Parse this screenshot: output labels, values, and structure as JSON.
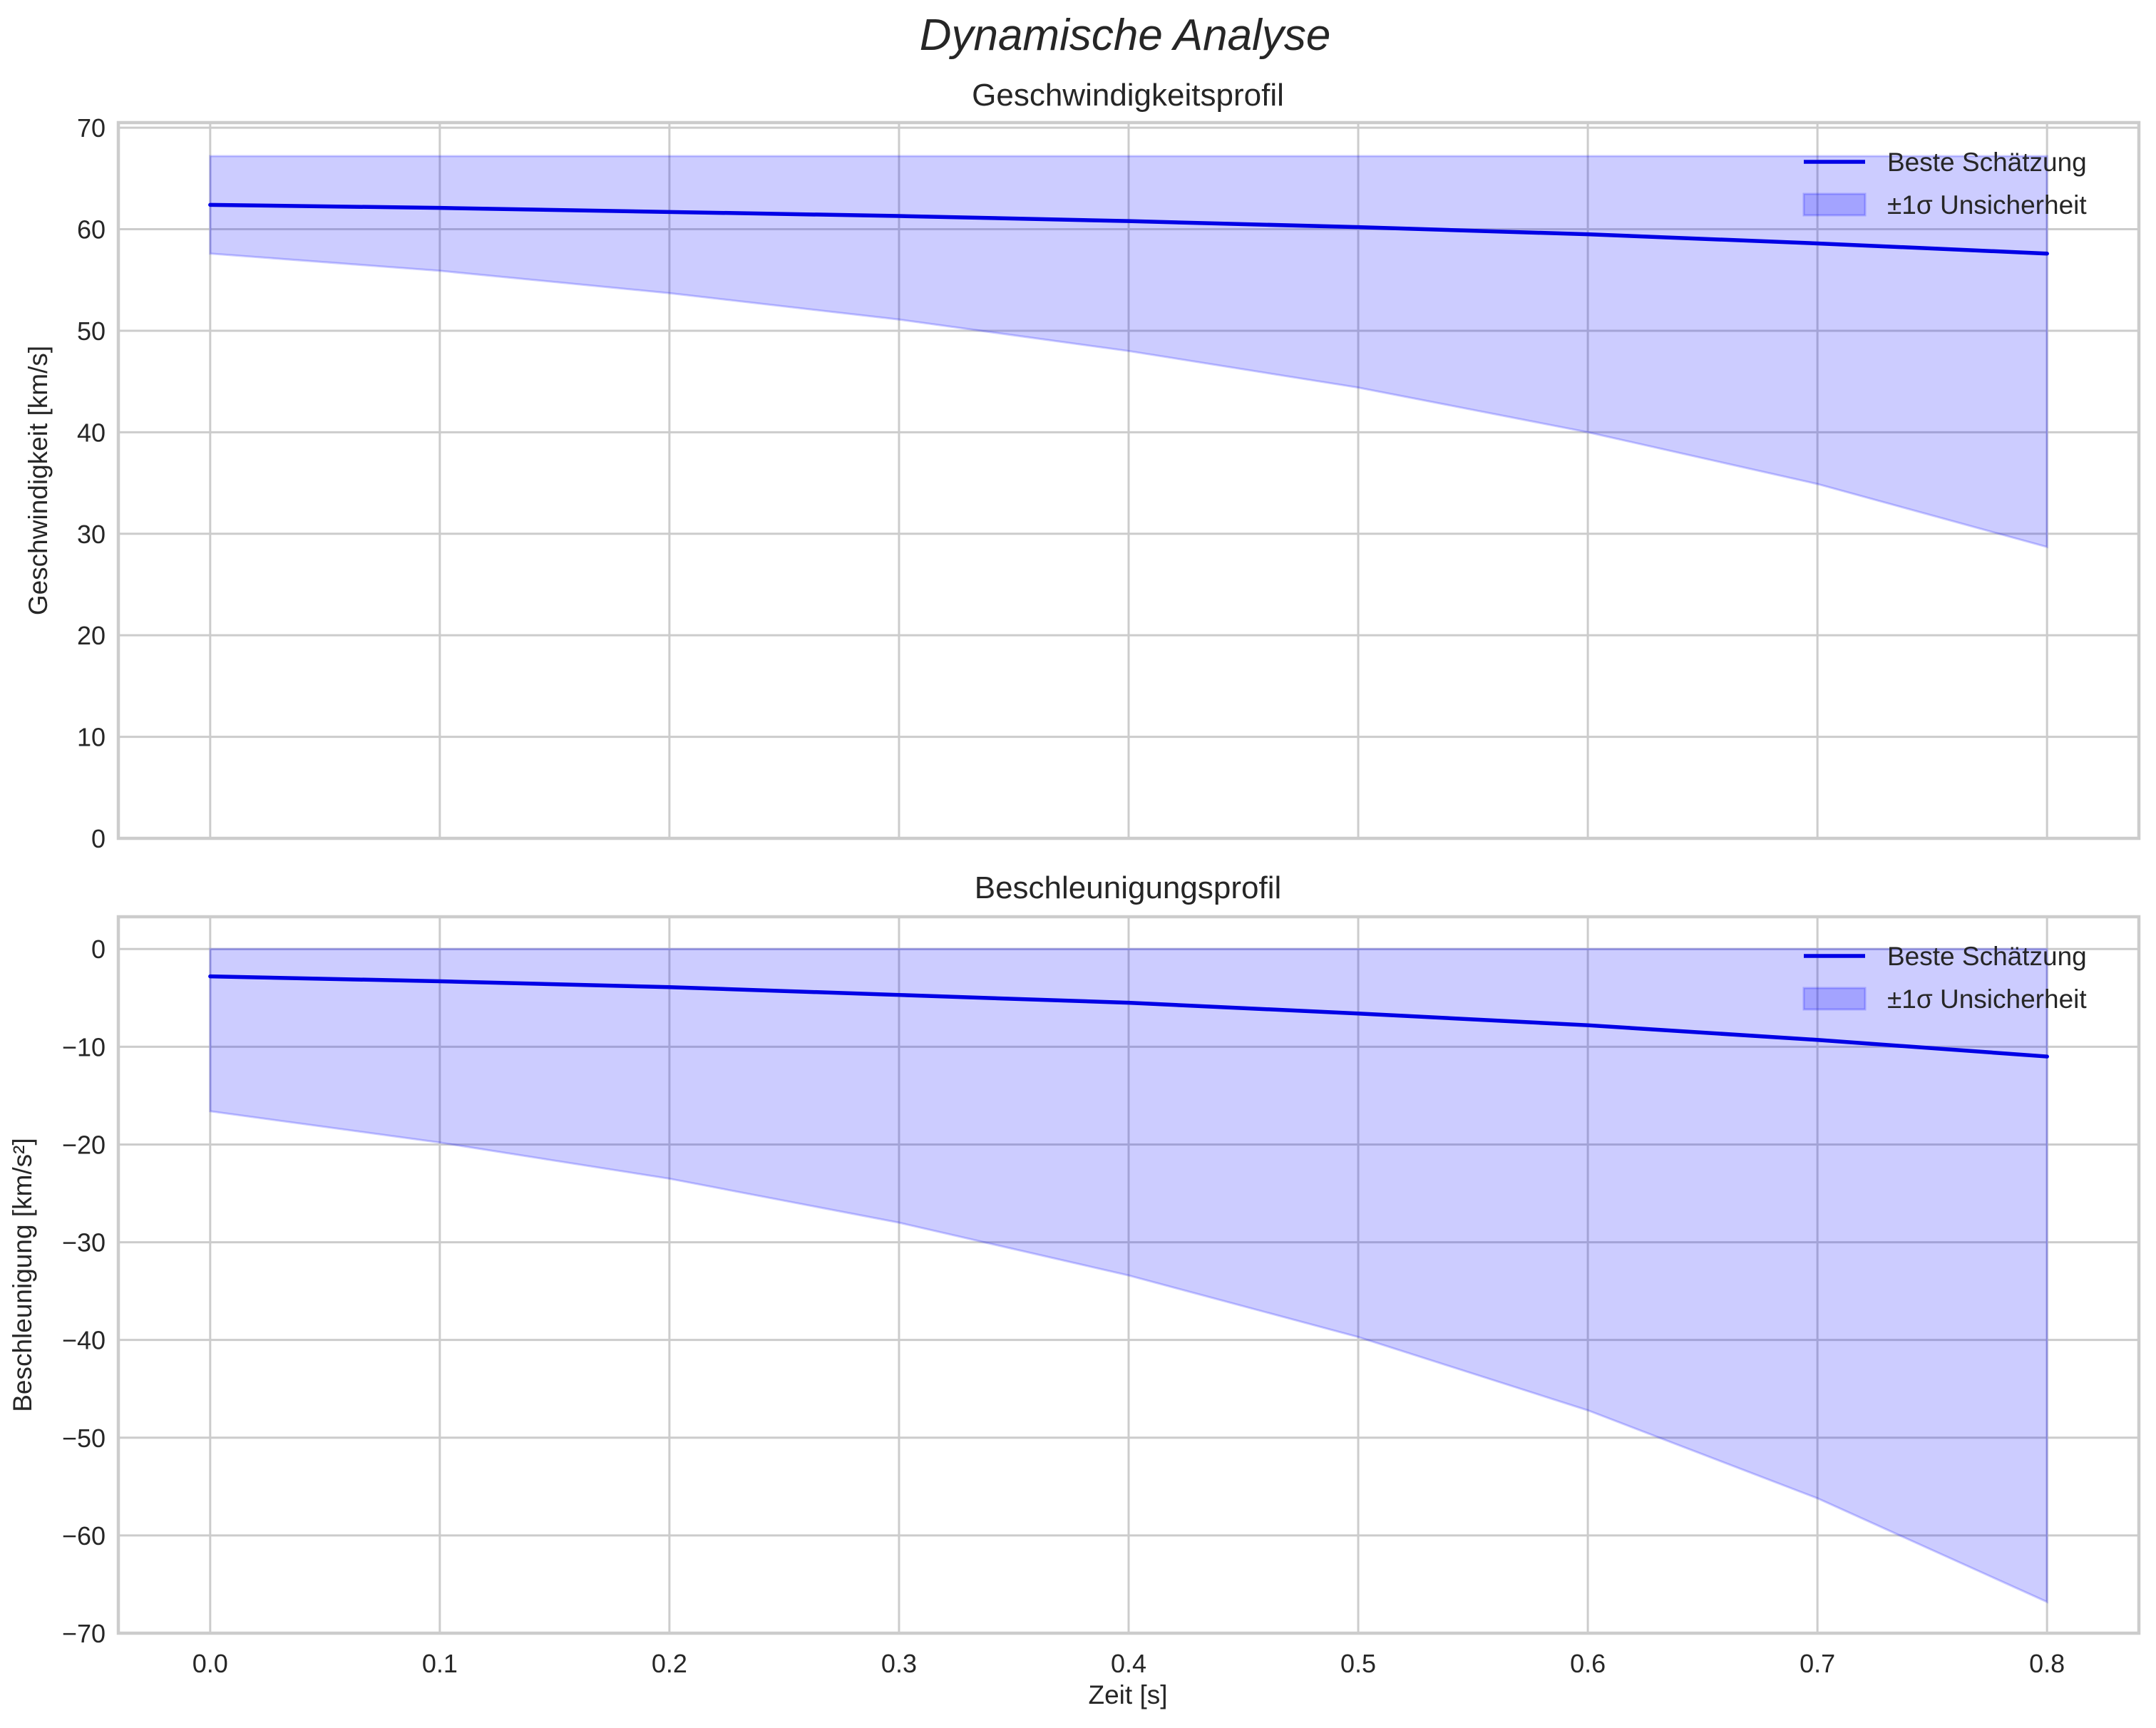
{
  "figure": {
    "suptitle": "Dynamische Analyse",
    "background": "#ffffff"
  },
  "colors": {
    "line": "#0000e6",
    "fill": "#0000ff",
    "fill_opacity": 0.2,
    "grid": "#cccccc",
    "text": "#262626"
  },
  "legend": {
    "line_label": "Beste Schätzung",
    "fill_label": "±1σ Unsicherheit"
  },
  "chart_data": [
    {
      "type": "line",
      "title": "Geschwindigkeitsprofil",
      "xlabel": "",
      "ylabel": "Geschwindigkeit [km/s]",
      "xlim": [
        -0.04,
        0.84
      ],
      "ylim": [
        0,
        70.5
      ],
      "xticks": [
        0.0,
        0.1,
        0.2,
        0.3,
        0.4,
        0.5,
        0.6,
        0.7,
        0.8
      ],
      "xtick_labels_visible": false,
      "yticks": [
        0,
        10,
        20,
        30,
        40,
        50,
        60,
        70
      ],
      "ytick_labels": [
        "0",
        "10",
        "20",
        "30",
        "40",
        "50",
        "60",
        "70"
      ],
      "grid": true,
      "legend_position": "upper right",
      "x": [
        0.0,
        0.1,
        0.2,
        0.3,
        0.4,
        0.5,
        0.6,
        0.7,
        0.8
      ],
      "series": [
        {
          "name": "Beste Schätzung",
          "kind": "line",
          "values": [
            62.4,
            62.1,
            61.7,
            61.3,
            60.8,
            60.2,
            59.5,
            58.6,
            57.6
          ]
        },
        {
          "name": "±1σ Unsicherheit",
          "kind": "band",
          "upper": [
            67.2,
            67.2,
            67.2,
            67.2,
            67.2,
            67.2,
            67.2,
            67.2,
            67.2
          ],
          "lower": [
            57.6,
            55.9,
            53.7,
            51.1,
            48.0,
            44.4,
            40.0,
            34.9,
            28.7
          ]
        }
      ]
    },
    {
      "type": "line",
      "title": "Beschleunigungsprofil",
      "xlabel": "Zeit [s]",
      "ylabel": "Beschleunigung [km/s²]",
      "xlim": [
        -0.04,
        0.84
      ],
      "ylim": [
        -70,
        3.3
      ],
      "xticks": [
        0.0,
        0.1,
        0.2,
        0.3,
        0.4,
        0.5,
        0.6,
        0.7,
        0.8
      ],
      "xtick_labels": [
        "0.0",
        "0.1",
        "0.2",
        "0.3",
        "0.4",
        "0.5",
        "0.6",
        "0.7",
        "0.8"
      ],
      "yticks": [
        0,
        -10,
        -20,
        -30,
        -40,
        -50,
        -60,
        -70
      ],
      "ytick_labels": [
        "0",
        "−10",
        "−20",
        "−30",
        "−40",
        "−50",
        "−60",
        "−70"
      ],
      "grid": true,
      "legend_position": "upper right",
      "x": [
        0.0,
        0.1,
        0.2,
        0.3,
        0.4,
        0.5,
        0.6,
        0.7,
        0.8
      ],
      "series": [
        {
          "name": "Beste Schätzung",
          "kind": "line",
          "values": [
            -2.8,
            -3.3,
            -3.9,
            -4.7,
            -5.5,
            -6.6,
            -7.8,
            -9.3,
            -11.0
          ]
        },
        {
          "name": "±1σ Unsicherheit",
          "kind": "band",
          "upper": [
            0,
            0,
            0,
            0,
            0,
            0,
            0,
            0,
            0
          ],
          "lower": [
            -16.6,
            -19.8,
            -23.5,
            -28.0,
            -33.4,
            -39.7,
            -47.2,
            -56.2,
            -66.8
          ]
        }
      ]
    }
  ]
}
